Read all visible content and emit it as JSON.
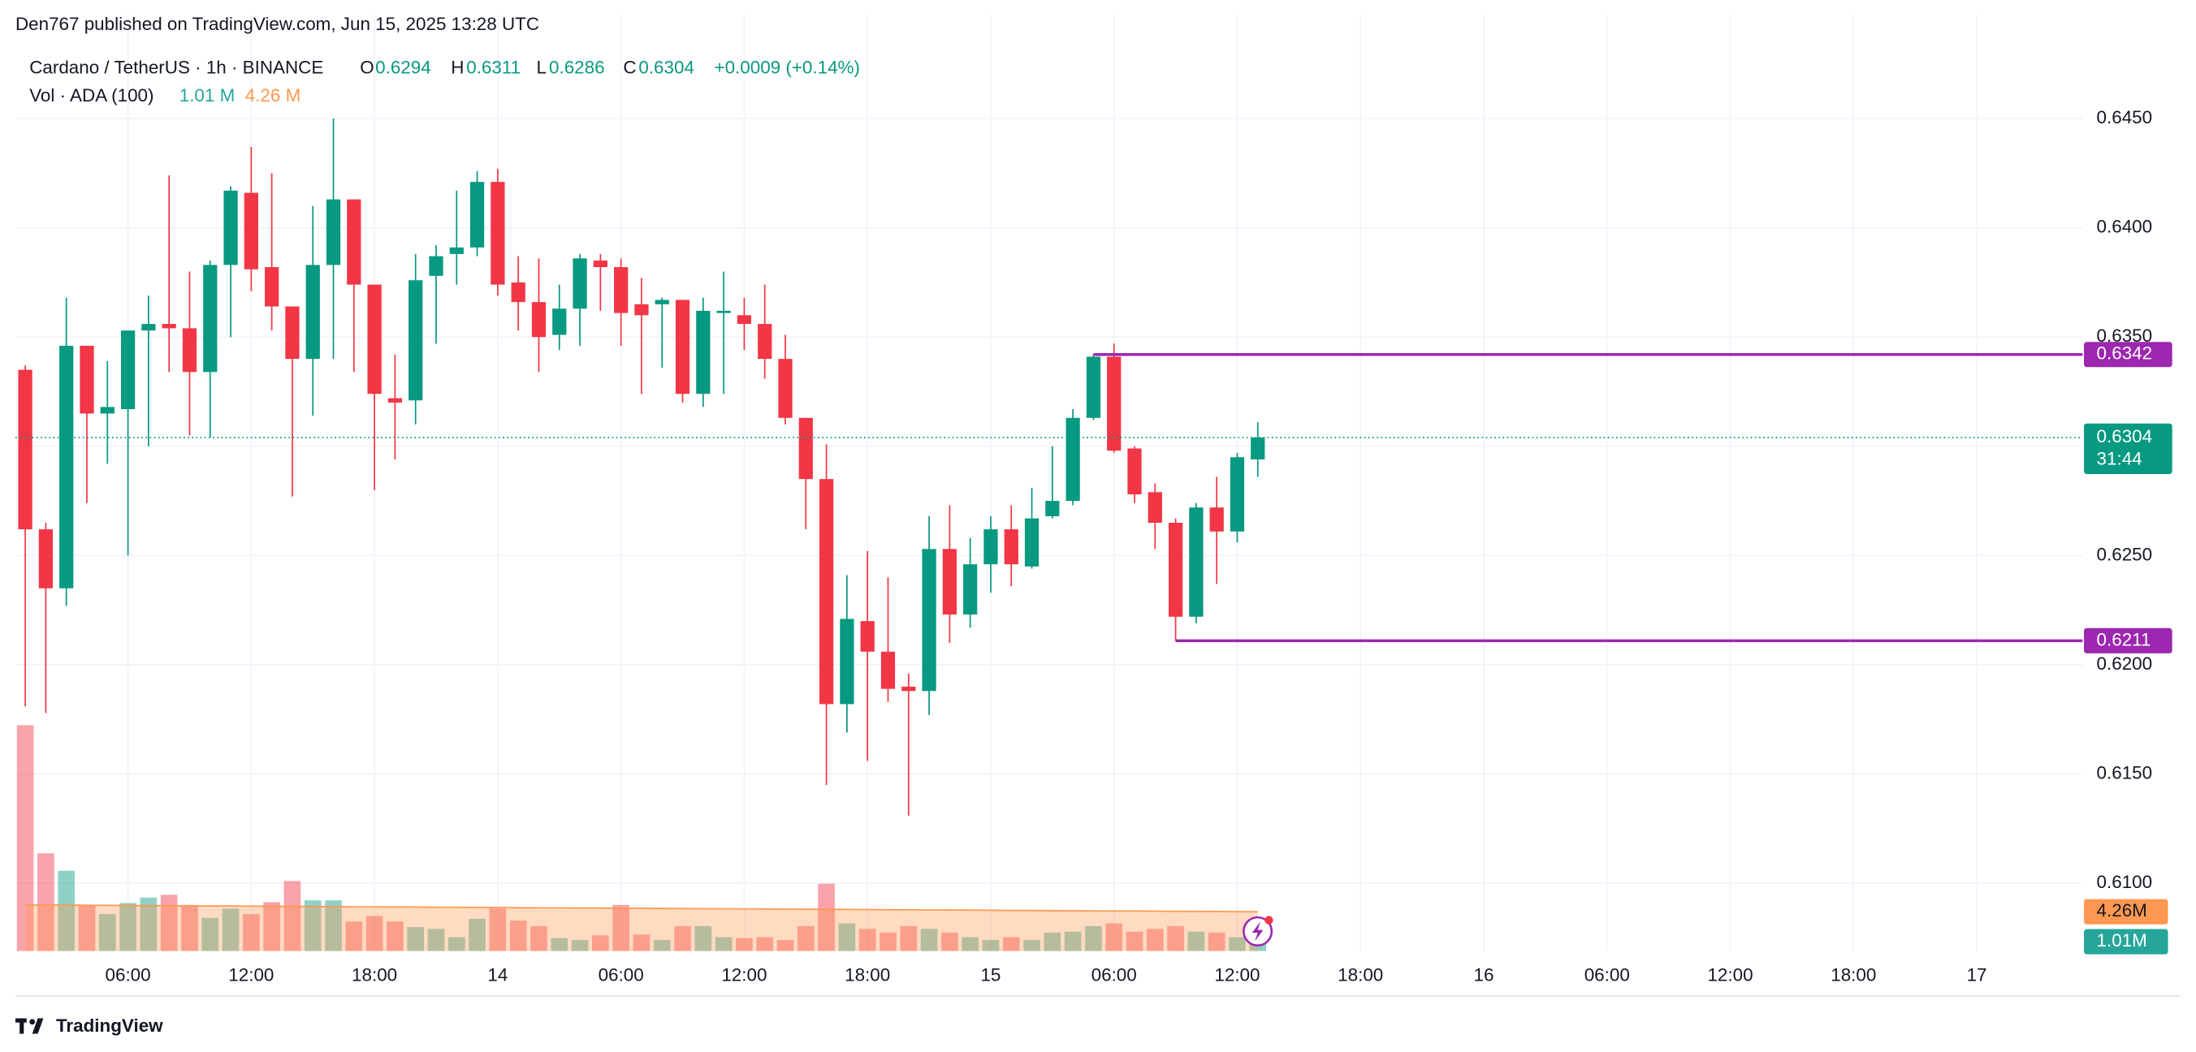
{
  "header": {
    "published": "Den767 published on TradingView.com, Jun 15, 2025 13:28 UTC",
    "symbol": "Cardano / TetherUS · 1h · BINANCE",
    "o": "O",
    "h": "H",
    "l": "L",
    "c": "C",
    "change": "+0.0009 (+0.14%)",
    "volume_title": "Vol · ADA (100)",
    "volume_value": "1.01 M",
    "volume_ma_value": "4.26 M",
    "footer": "TradingView"
  },
  "chart_data": {
    "type": "candlestick",
    "up_color": "#089981",
    "down_color": "#f23645",
    "grid": true,
    "x": [
      1,
      2,
      3,
      4,
      5,
      6,
      7,
      8,
      9,
      10,
      11,
      12,
      13,
      14,
      15,
      16,
      17,
      18,
      19,
      20,
      21,
      22,
      23,
      24,
      25,
      26,
      27,
      28,
      29,
      30,
      31,
      32,
      33,
      34,
      35,
      36,
      37,
      38,
      39,
      40,
      41,
      42,
      43,
      44,
      45,
      46,
      47,
      48,
      49,
      50,
      51,
      52,
      53,
      54,
      55,
      56,
      57,
      58,
      59,
      60,
      61
    ],
    "open": [
      0.6335,
      0.6262,
      0.6235,
      0.6346,
      0.6315,
      0.6317,
      0.6353,
      0.6356,
      0.6354,
      0.6334,
      0.6383,
      0.6416,
      0.6382,
      0.6364,
      0.634,
      0.6383,
      0.6413,
      0.6374,
      0.6322,
      0.6321,
      0.6378,
      0.6388,
      0.6391,
      0.6421,
      0.6375,
      0.6366,
      0.6351,
      0.6363,
      0.6385,
      0.6382,
      0.6365,
      0.6365,
      0.6367,
      0.6324,
      0.6361,
      0.636,
      0.6356,
      0.634,
      0.6313,
      0.6285,
      0.6182,
      0.622,
      0.6206,
      0.619,
      0.6188,
      0.6253,
      0.6223,
      0.6246,
      0.6262,
      0.6245,
      0.6268,
      0.6275,
      0.6313,
      0.6341,
      0.6299,
      0.6279,
      0.6265,
      0.6222,
      0.6272,
      0.6261,
      0.6294
    ],
    "high": [
      0.6337,
      0.6265,
      0.6368,
      0.6346,
      0.6339,
      0.6353,
      0.6369,
      0.6424,
      0.638,
      0.6385,
      0.6419,
      0.6437,
      0.6425,
      0.6364,
      0.641,
      0.645,
      0.6413,
      0.6374,
      0.6342,
      0.6388,
      0.6392,
      0.6417,
      0.6426,
      0.6427,
      0.6387,
      0.6386,
      0.6374,
      0.6388,
      0.6388,
      0.6386,
      0.6377,
      0.6368,
      0.6367,
      0.6368,
      0.638,
      0.6368,
      0.6374,
      0.6351,
      0.6313,
      0.6301,
      0.6241,
      0.6252,
      0.624,
      0.6196,
      0.6268,
      0.6273,
      0.6258,
      0.6268,
      0.6273,
      0.6281,
      0.63,
      0.6317,
      0.6342,
      0.6347,
      0.63,
      0.6283,
      0.6267,
      0.6274,
      0.6286,
      0.6297,
      0.6311
    ],
    "low": [
      0.6181,
      0.6178,
      0.6227,
      0.6274,
      0.6292,
      0.625,
      0.63,
      0.6334,
      0.6305,
      0.6304,
      0.635,
      0.6371,
      0.6353,
      0.6277,
      0.6314,
      0.634,
      0.6334,
      0.628,
      0.6294,
      0.631,
      0.6347,
      0.6374,
      0.6387,
      0.6369,
      0.6353,
      0.6334,
      0.6344,
      0.6346,
      0.6362,
      0.6346,
      0.6324,
      0.6336,
      0.632,
      0.6318,
      0.6324,
      0.6344,
      0.6331,
      0.631,
      0.6262,
      0.6145,
      0.6169,
      0.6156,
      0.6183,
      0.6131,
      0.6177,
      0.621,
      0.6217,
      0.6233,
      0.6236,
      0.6244,
      0.6267,
      0.6273,
      0.6312,
      0.6297,
      0.6274,
      0.6253,
      0.6211,
      0.6219,
      0.6237,
      0.6256,
      0.6286
    ],
    "close": [
      0.6262,
      0.6235,
      0.6346,
      0.6315,
      0.6318,
      0.6353,
      0.6356,
      0.6354,
      0.6334,
      0.6383,
      0.6417,
      0.6381,
      0.6364,
      0.634,
      0.6383,
      0.6413,
      0.6374,
      0.6324,
      0.632,
      0.6376,
      0.6387,
      0.6391,
      0.6421,
      0.6374,
      0.6366,
      0.635,
      0.6363,
      0.6386,
      0.6382,
      0.6361,
      0.636,
      0.6367,
      0.6324,
      0.6362,
      0.6362,
      0.6356,
      0.634,
      0.6313,
      0.6285,
      0.6182,
      0.6221,
      0.6206,
      0.6189,
      0.6188,
      0.6253,
      0.6223,
      0.6246,
      0.6262,
      0.6246,
      0.6267,
      0.6275,
      0.6313,
      0.6341,
      0.6298,
      0.6278,
      0.6265,
      0.6222,
      0.6272,
      0.6261,
      0.6295,
      0.6304
    ],
    "volume": [
      24.5,
      10.6,
      8.7,
      5.0,
      4.0,
      5.2,
      5.8,
      6.1,
      5.0,
      3.6,
      4.6,
      4.0,
      5.3,
      7.6,
      5.5,
      5.5,
      3.2,
      3.8,
      3.2,
      2.6,
      2.4,
      1.5,
      3.5,
      4.6,
      3.3,
      2.7,
      1.4,
      1.2,
      1.7,
      5.0,
      1.8,
      1.2,
      2.7,
      2.7,
      1.5,
      1.4,
      1.5,
      1.2,
      2.7,
      7.3,
      3.0,
      2.4,
      2.0,
      2.7,
      2.4,
      2.0,
      1.5,
      1.2,
      1.5,
      1.2,
      2.0,
      2.1,
      2.7,
      3.0,
      2.1,
      2.4,
      2.7,
      2.1,
      2.0,
      1.5,
      1.01
    ],
    "volume_ma": [
      5.0,
      4.99,
      4.98,
      4.96,
      4.95,
      4.94,
      4.93,
      4.91,
      4.9,
      4.89,
      4.88,
      4.86,
      4.85,
      4.84,
      4.83,
      4.82,
      4.8,
      4.79,
      4.78,
      4.77,
      4.75,
      4.74,
      4.73,
      4.72,
      4.7,
      4.69,
      4.68,
      4.67,
      4.66,
      4.64,
      4.63,
      4.62,
      4.61,
      4.59,
      4.58,
      4.57,
      4.56,
      4.54,
      4.53,
      4.52,
      4.51,
      4.5,
      4.48,
      4.47,
      4.46,
      4.45,
      4.43,
      4.42,
      4.41,
      4.4,
      4.38,
      4.37,
      4.36,
      4.35,
      4.34,
      4.32,
      4.31,
      4.3,
      4.29,
      4.27,
      4.26
    ],
    "volume_label": "1.01M",
    "volume_ma_label": "4.26M",
    "volume_ylim": [
      0,
      98.6
    ],
    "volume_ma_color": "#ff9850",
    "countdown": "31:44",
    "levels": [
      {
        "value": 0.6342,
        "from_x": 53,
        "color": "#9c27b0"
      },
      {
        "value": 0.6211,
        "from_x": 57,
        "color": "#9c27b0"
      }
    ],
    "xlim": [
      0.52,
      101.15
    ],
    "xticks": [
      {
        "value": 6,
        "label": "06:00"
      },
      {
        "value": 12,
        "label": "12:00"
      },
      {
        "value": 18,
        "label": "18:00"
      },
      {
        "value": 24,
        "label": "14"
      },
      {
        "value": 30,
        "label": "06:00"
      },
      {
        "value": 36,
        "label": "12:00"
      },
      {
        "value": 42,
        "label": "18:00"
      },
      {
        "value": 48,
        "label": "15"
      },
      {
        "value": 54,
        "label": "06:00"
      },
      {
        "value": 60,
        "label": "12:00"
      },
      {
        "value": 66,
        "label": "18:00"
      },
      {
        "value": 72,
        "label": "16"
      },
      {
        "value": 78,
        "label": "06:00"
      },
      {
        "value": 84,
        "label": "12:00"
      },
      {
        "value": 90,
        "label": "18:00"
      },
      {
        "value": 96,
        "label": "17"
      }
    ],
    "ylim": [
      0.6069,
      0.6485
    ],
    "yticks": [
      {
        "value": 0.61,
        "label": "0.6100"
      },
      {
        "value": 0.615,
        "label": "0.6150"
      },
      {
        "value": 0.62,
        "label": "0.6200"
      },
      {
        "value": 0.625,
        "label": "0.6250"
      },
      {
        "value": 0.63,
        "label": "0.6300"
      },
      {
        "value": 0.635,
        "label": "0.6350"
      },
      {
        "value": 0.64,
        "label": "0.6400"
      },
      {
        "value": 0.645,
        "label": "0.6450"
      }
    ]
  }
}
